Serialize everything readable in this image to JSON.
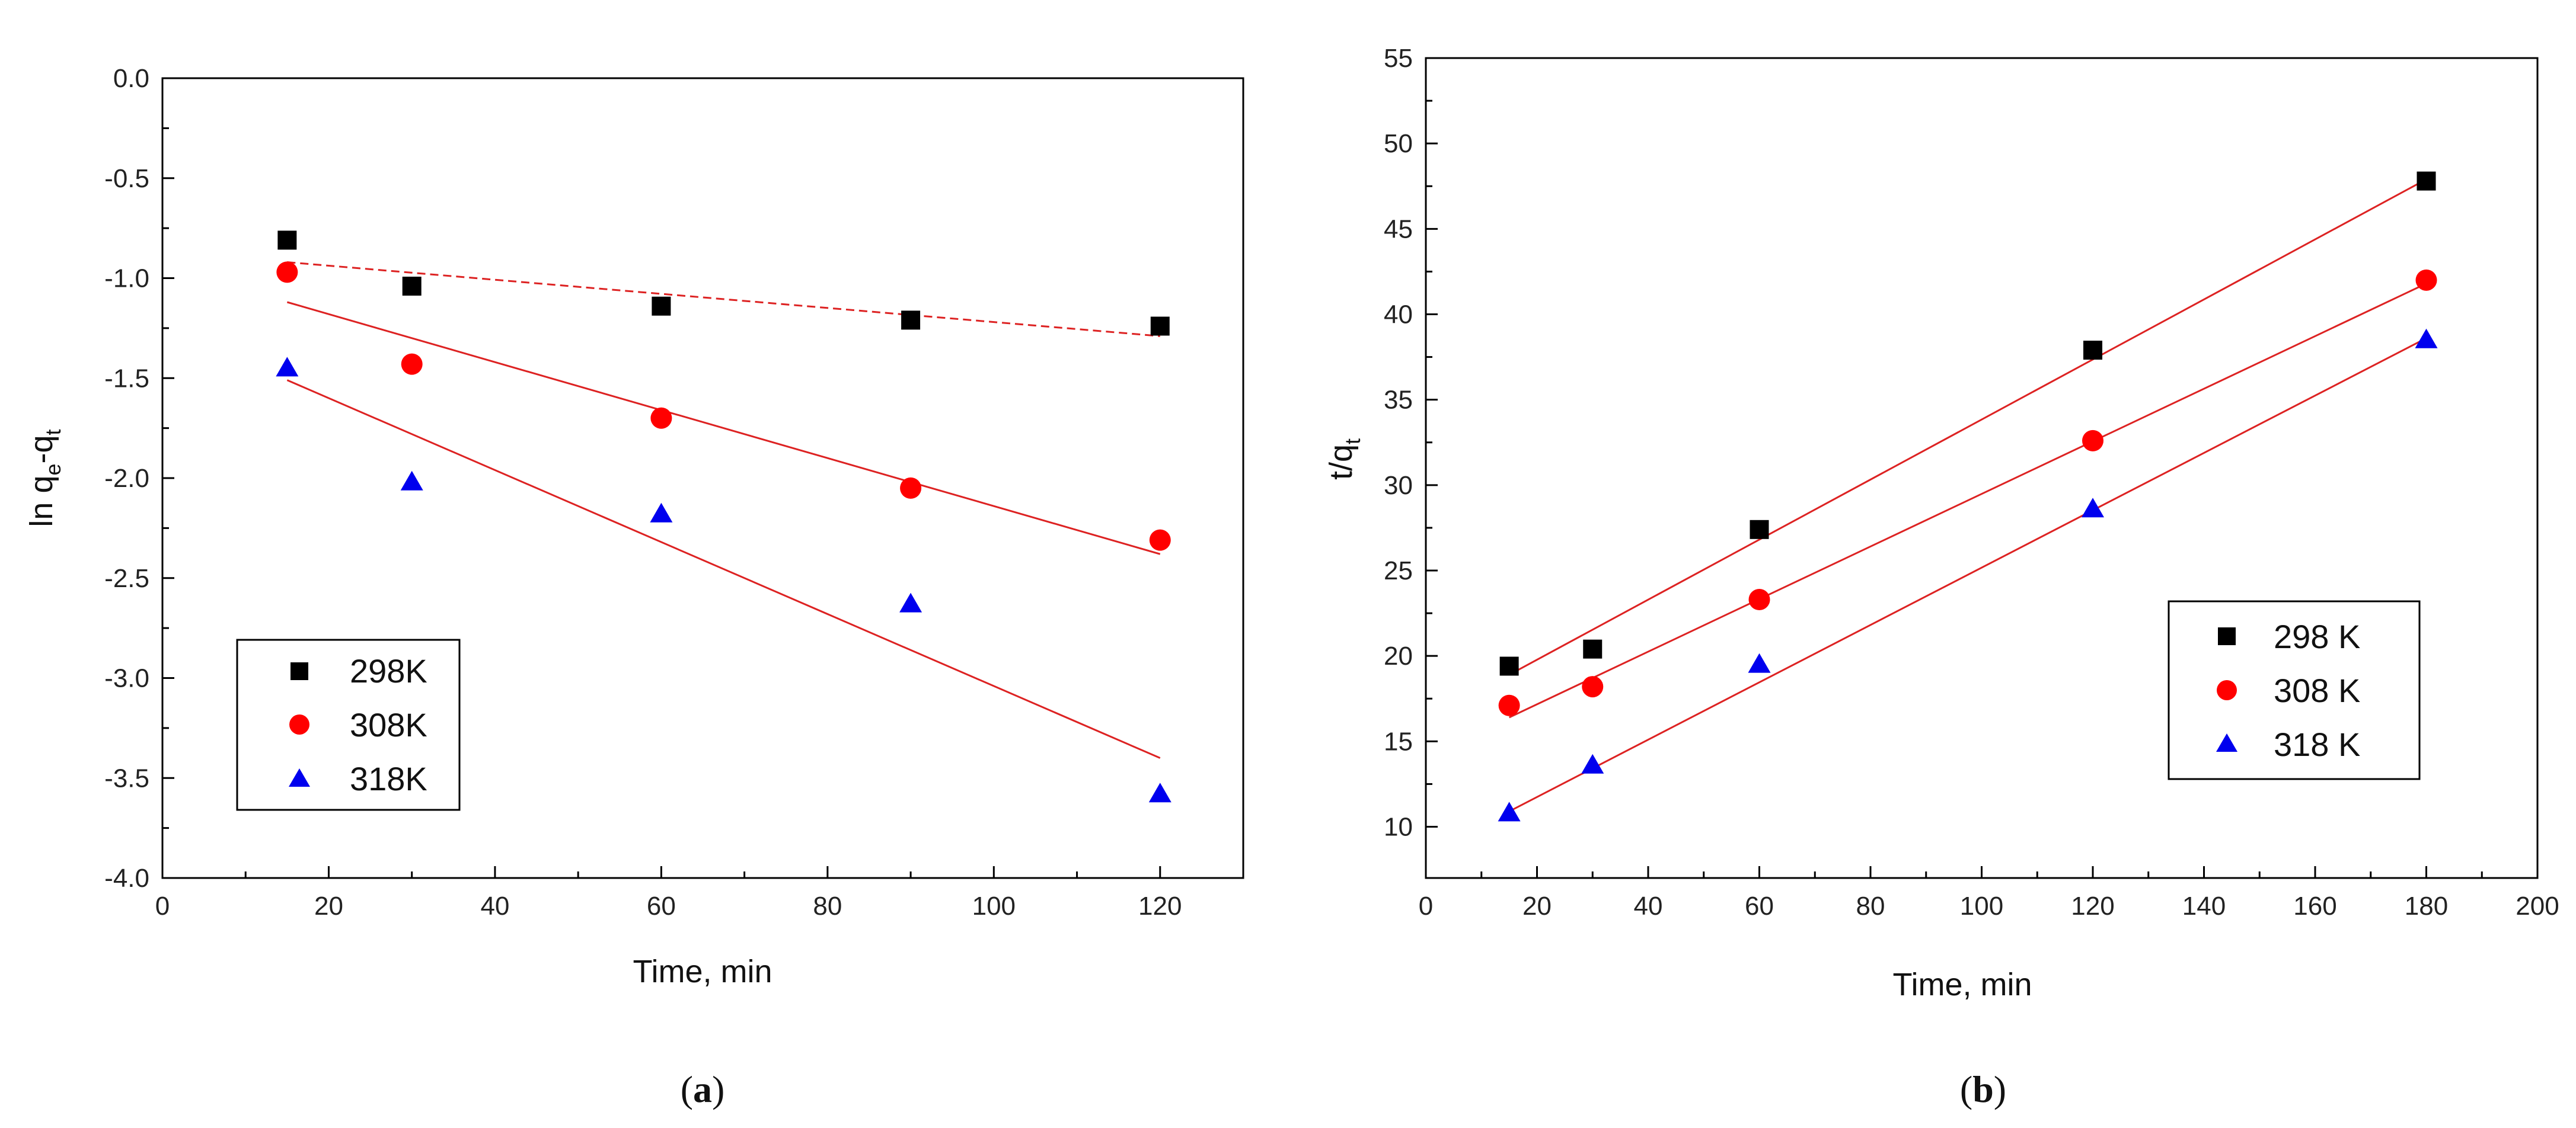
{
  "chart_data": [
    {
      "id": "a",
      "type": "scatter",
      "caption": {
        "open": "(",
        "letter": "a",
        "close": ")"
      },
      "xlabel": "Time, min",
      "ylabel": {
        "main": "ln q",
        "sub1": "e",
        "mid": "-q",
        "sub2": "t"
      },
      "xlim": [
        0,
        130
      ],
      "ylim": [
        -4.0,
        0.0
      ],
      "xticks": [
        0,
        20,
        40,
        60,
        80,
        100,
        120
      ],
      "yticks": [
        0.0,
        -0.5,
        -1.0,
        -1.5,
        -2.0,
        -2.5,
        -3.0,
        -3.5,
        -4.0
      ],
      "ytick_labels": [
        "0.0",
        "-0.5",
        "-1.0",
        "-1.5",
        "-2.0",
        "-2.5",
        "-3.0",
        "-3.5",
        "-4.0"
      ],
      "x": [
        15,
        30,
        60,
        90,
        120
      ],
      "series": [
        {
          "name": "298K",
          "marker": "square",
          "color": "#000000",
          "values": [
            -0.81,
            -1.04,
            -1.14,
            -1.21,
            -1.24
          ],
          "fit": {
            "x": [
              15,
              120
            ],
            "y": [
              -0.92,
              -1.29
            ],
            "style": "dashed"
          }
        },
        {
          "name": "308K",
          "marker": "circle",
          "color": "#ff0000",
          "values": [
            -0.97,
            -1.43,
            -1.7,
            -2.05,
            -2.31
          ],
          "fit": {
            "x": [
              15,
              120
            ],
            "y": [
              -1.12,
              -2.38
            ],
            "style": "solid"
          }
        },
        {
          "name": "318K",
          "marker": "triangle",
          "color": "#0000ee",
          "values": [
            -1.45,
            -2.02,
            -2.18,
            -2.63,
            -3.58
          ],
          "fit": {
            "x": [
              15,
              120
            ],
            "y": [
              -1.51,
              -3.4
            ],
            "style": "solid"
          }
        }
      ],
      "fit_color": "#dd2222",
      "legend_position": "bottom-left"
    },
    {
      "id": "b",
      "type": "scatter",
      "caption": {
        "open": "(",
        "letter": "b",
        "close": ")"
      },
      "xlabel": "Time, min",
      "ylabel": {
        "main": "t/q",
        "sub1": "t"
      },
      "xlim": [
        0,
        200
      ],
      "ylim": [
        7,
        55
      ],
      "xticks": [
        0,
        20,
        40,
        60,
        80,
        100,
        120,
        140,
        160,
        180,
        200
      ],
      "yticks": [
        10,
        15,
        20,
        25,
        30,
        35,
        40,
        45,
        50,
        55
      ],
      "ytick_labels": [
        "10",
        "15",
        "20",
        "25",
        "30",
        "35",
        "40",
        "45",
        "50",
        "55"
      ],
      "x": [
        15,
        30,
        60,
        120,
        180
      ],
      "series": [
        {
          "name": "298 K",
          "marker": "square",
          "color": "#000000",
          "values": [
            19.4,
            20.4,
            27.4,
            37.9,
            47.8
          ],
          "fit": {
            "x": [
              15,
              180
            ],
            "y": [
              18.9,
              47.9
            ],
            "style": "solid"
          }
        },
        {
          "name": "308 K",
          "marker": "circle",
          "color": "#ff0000",
          "values": [
            17.1,
            18.2,
            23.3,
            32.6,
            42.0
          ],
          "fit": {
            "x": [
              15,
              180
            ],
            "y": [
              16.4,
              41.8
            ],
            "style": "solid"
          }
        },
        {
          "name": "318 K",
          "marker": "triangle",
          "color": "#0000ee",
          "values": [
            10.8,
            13.6,
            19.5,
            28.6,
            38.5
          ],
          "fit": {
            "x": [
              15,
              180
            ],
            "y": [
              10.9,
              38.6
            ],
            "style": "solid"
          }
        }
      ],
      "fit_color": "#dd2222",
      "legend_position": "bottom-right"
    }
  ]
}
